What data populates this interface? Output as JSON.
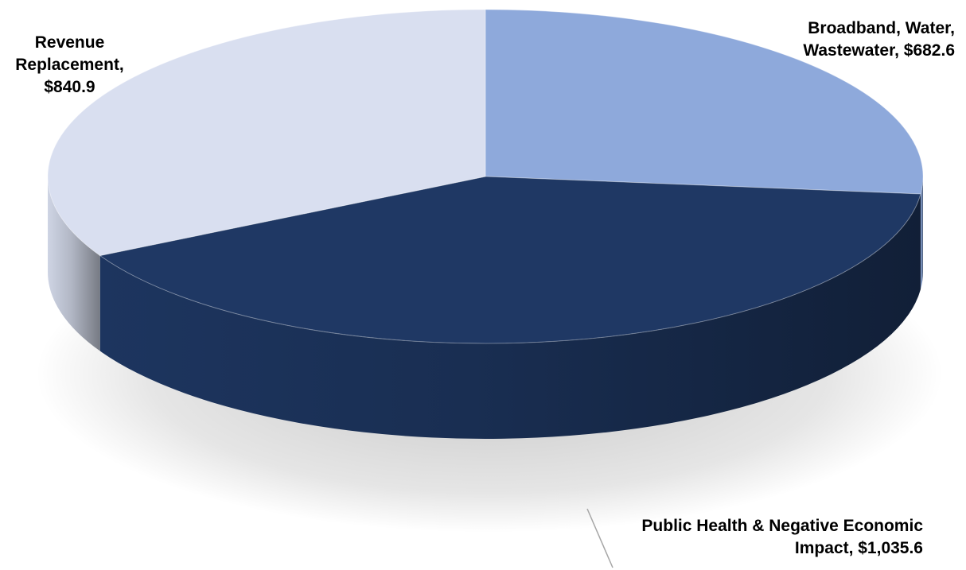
{
  "chart_data": {
    "type": "pie",
    "title": "",
    "slices": [
      {
        "label_lines": [
          "Broadband, Water,",
          "Wastewater, $682.6"
        ],
        "category": "Broadband, Water, Wastewater",
        "value": 682.6,
        "color": "#8ea9db"
      },
      {
        "label_lines": [
          "Public Health & Negative Economic",
          "Impact, $1,035.6"
        ],
        "category": "Public Health & Negative Economic Impact",
        "value": 1035.6,
        "color": "#1f3864"
      },
      {
        "label_lines": [
          "Revenue",
          "Replacement,",
          "$840.9"
        ],
        "category": "Revenue Replacement",
        "value": 840.9,
        "color": "#d9dff0"
      }
    ],
    "style": "3d",
    "legend": "none"
  }
}
